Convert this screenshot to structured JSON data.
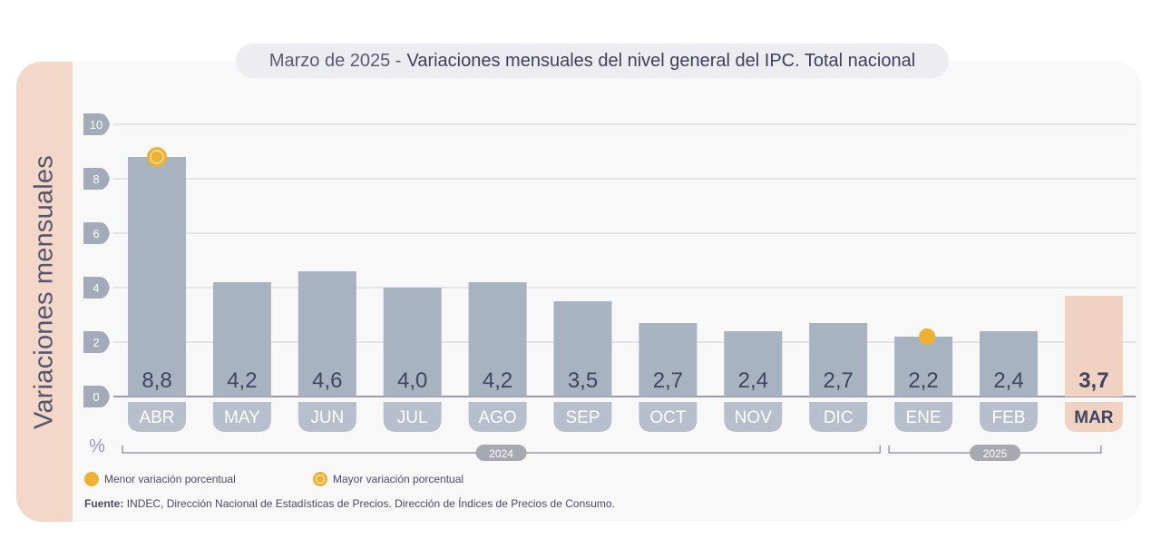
{
  "title_main": "Marzo de 2025 -",
  "title_rest": "Variaciones mensuales del nivel general del IPC. Total nacional",
  "unit_label": "%",
  "legend": {
    "min_label": "Menor variación porcentual",
    "max_label": "Mayor variación porcentual"
  },
  "source": {
    "prefix": "Fuente:",
    "text": "INDEC, Dirección Nacional de Estadísticas de Precios. Dirección de Índices de Precios de Consumo."
  },
  "colors": {
    "bar": "#a8b3c1",
    "bar_highlight": "#efd2c2",
    "marker": "#f0b030",
    "tick_pill": "#a3abbb",
    "year_pill": "#a8a8b0",
    "label_text": "#3f4560"
  },
  "chart_data": {
    "type": "bar",
    "title": "Marzo de 2025 - Variaciones mensuales del nivel general del IPC. Total nacional",
    "ylabel": "Variaciones mensuales",
    "yunit": "%",
    "ylim": [
      0,
      10
    ],
    "yticks": [
      "0",
      "2",
      "4",
      "6",
      "8",
      "10"
    ],
    "grid": true,
    "categories": [
      "ABR",
      "MAY",
      "JUN",
      "JUL",
      "AGO",
      "SEP",
      "OCT",
      "NOV",
      "DIC",
      "ENE",
      "FEB",
      "MAR"
    ],
    "values": [
      8.8,
      4.2,
      4.6,
      4.0,
      4.2,
      3.5,
      2.7,
      2.4,
      2.7,
      2.2,
      2.4,
      3.7
    ],
    "value_labels": [
      "8,8",
      "4,2",
      "4,6",
      "4,0",
      "4,2",
      "3,5",
      "2,7",
      "2,4",
      "2,7",
      "2,2",
      "2,4",
      "3,7"
    ],
    "highlight_index": 11,
    "max_index": 0,
    "min_index": 9,
    "year_groups": [
      {
        "label": "2024",
        "from": 0,
        "to": 8
      },
      {
        "label": "2025",
        "from": 9,
        "to": 11
      }
    ]
  }
}
